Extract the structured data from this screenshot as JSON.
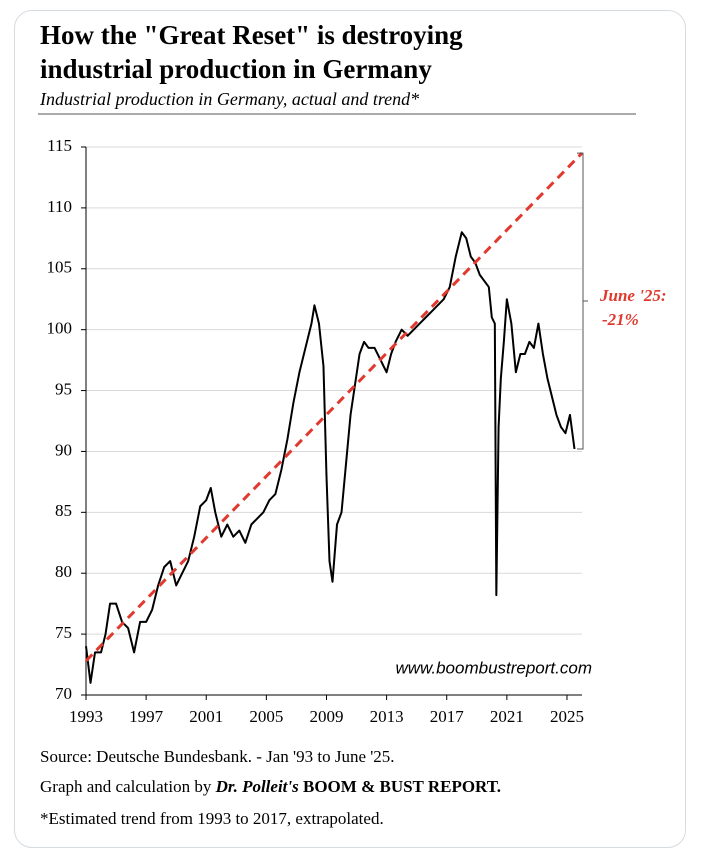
{
  "chart_data": {
    "type": "line",
    "title": [
      "How the \"Great Reset\" is destroying",
      "industrial production in Germany"
    ],
    "subtitle": "Industrial production in Germany, actual and trend*",
    "xlim": [
      1993,
      2026
    ],
    "xticks": [
      1993,
      1997,
      2001,
      2005,
      2009,
      2013,
      2017,
      2021,
      2025
    ],
    "ylim": [
      70,
      115
    ],
    "yticks": [
      70,
      75,
      80,
      85,
      90,
      95,
      100,
      105,
      110,
      115
    ],
    "grid": true,
    "series": [
      {
        "color": "#000000",
        "dash": false,
        "x": [
          1993.0,
          1993.3,
          1993.6,
          1994.0,
          1994.3,
          1994.6,
          1995.0,
          1995.4,
          1995.8,
          1996.2,
          1996.6,
          1997.0,
          1997.4,
          1997.8,
          1998.2,
          1998.6,
          1999.0,
          1999.4,
          1999.8,
          2000.2,
          2000.6,
          2001.0,
          2001.3,
          2001.6,
          2002.0,
          2002.4,
          2002.8,
          2003.2,
          2003.6,
          2004.0,
          2004.4,
          2004.8,
          2005.2,
          2005.6,
          2006.0,
          2006.4,
          2006.8,
          2007.2,
          2007.6,
          2008.0,
          2008.2,
          2008.5,
          2008.8,
          2009.0,
          2009.2,
          2009.4,
          2009.7,
          2010.0,
          2010.3,
          2010.6,
          2010.9,
          2011.2,
          2011.5,
          2011.8,
          2012.2,
          2012.6,
          2013.0,
          2013.3,
          2013.6,
          2014.0,
          2014.4,
          2014.8,
          2015.2,
          2015.6,
          2016.0,
          2016.4,
          2016.8,
          2017.2,
          2017.6,
          2018.0,
          2018.3,
          2018.6,
          2018.9,
          2019.2,
          2019.5,
          2019.8,
          2020.0,
          2020.2,
          2020.3,
          2020.45,
          2020.6,
          2020.8,
          2021.0,
          2021.3,
          2021.6,
          2021.9,
          2022.2,
          2022.5,
          2022.8,
          2023.1,
          2023.4,
          2023.7,
          2024.0,
          2024.3,
          2024.6,
          2024.9,
          2025.2,
          2025.5
        ],
        "values": [
          74,
          71,
          73.5,
          73.5,
          75,
          77.5,
          77.5,
          76,
          75.5,
          73.5,
          76,
          76,
          77,
          79,
          80.5,
          81,
          79,
          80,
          81,
          83,
          85.5,
          86,
          87,
          85,
          83,
          84,
          83,
          83.5,
          82.5,
          84,
          84.5,
          85,
          86,
          86.5,
          88.5,
          91,
          94,
          96.5,
          98.5,
          100.5,
          102,
          100.5,
          97,
          88,
          81,
          79.3,
          84,
          85,
          89,
          93,
          95.5,
          98,
          99,
          98.5,
          98.5,
          97.5,
          96.5,
          98,
          99,
          100,
          99.5,
          100,
          100.5,
          101,
          101.5,
          102,
          102.5,
          103.5,
          106,
          108,
          107.5,
          106,
          105.5,
          104.5,
          104,
          103.5,
          101,
          100.5,
          78.2,
          92,
          96,
          99,
          102.5,
          100.5,
          96.5,
          98,
          98,
          99,
          98.5,
          100.5,
          98,
          96,
          94.5,
          93,
          92,
          91.5,
          93,
          90.2
        ]
      },
      {
        "color": "#e03a2f",
        "dash": true,
        "x": [
          1993,
          2026
        ],
        "values": [
          72.8,
          114.5
        ]
      }
    ],
    "annotation": [
      "June '25:",
      "-21%"
    ],
    "watermark": "www.boombustreport.com"
  },
  "footer": {
    "source": "Source: Deutsche Bundesbank. - Jan '93 to June '25.",
    "credit": [
      "Graph and calculation by",
      "Dr. Polleit's",
      "BOOM & BUST REPORT."
    ],
    "note": "*Estimated trend from 1993 to 2017, extrapolated."
  }
}
